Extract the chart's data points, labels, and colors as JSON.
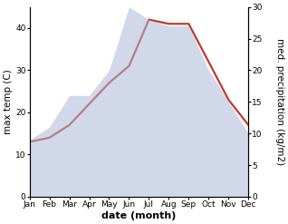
{
  "months": [
    "Jan",
    "Feb",
    "Mar",
    "Apr",
    "May",
    "Jun",
    "Jul",
    "Aug",
    "Sep",
    "Oct",
    "Nov",
    "Dec"
  ],
  "temp": [
    13,
    14,
    17,
    22,
    27,
    31,
    42,
    41,
    41,
    32,
    23,
    17
  ],
  "precip": [
    9,
    11,
    16,
    16,
    20,
    30,
    28,
    27,
    27,
    20,
    15,
    10
  ],
  "temp_color": "#c0392b",
  "precip_fill_color": "#aab8d8",
  "precip_fill_alpha": 0.55,
  "ylabel_left": "max temp (C)",
  "ylabel_right": "med. precipitation (kg/m2)",
  "xlabel": "date (month)",
  "ylim_left": [
    0,
    45
  ],
  "ylim_right": [
    0,
    30
  ],
  "yticks_left": [
    0,
    10,
    20,
    30,
    40
  ],
  "yticks_right": [
    0,
    5,
    10,
    15,
    20,
    25,
    30
  ],
  "bg_color": "#ffffff",
  "temp_linewidth": 1.6,
  "tick_fontsize": 6.5,
  "label_fontsize": 7.5,
  "xlabel_fontsize": 8
}
